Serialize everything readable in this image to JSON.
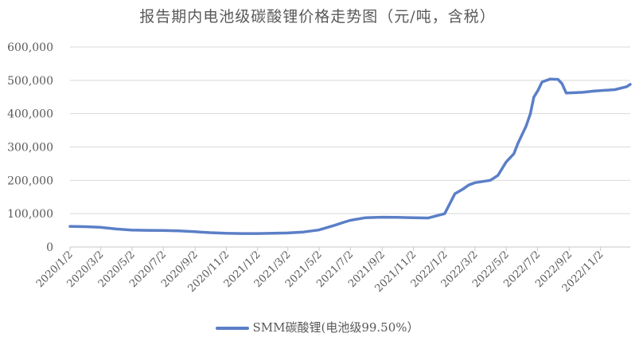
{
  "chart_data": {
    "type": "line",
    "title": "报告期内电池级碳酸锂价格走势图（元/吨，含税）",
    "xlabel": "",
    "ylabel": "",
    "ylim": [
      0,
      600000
    ],
    "xlim": [
      "2020-01-02",
      "2022-12-30"
    ],
    "yticks": [
      "0",
      "100,000",
      "200,000",
      "300,000",
      "400,000",
      "500,000",
      "600,000"
    ],
    "xticks": [
      "2020/1/2",
      "2020/3/2",
      "2020/5/2",
      "2020/7/2",
      "2020/9/2",
      "2020/11/2",
      "2021/1/2",
      "2021/3/2",
      "2021/5/2",
      "2021/7/2",
      "2021/9/2",
      "2021/11/2",
      "2022/1/2",
      "2022/3/2",
      "2022/5/2",
      "2022/7/2",
      "2022/9/2",
      "2022/11/2"
    ],
    "grid": true,
    "legend": "bottom",
    "color": "#5b7fc7",
    "series": [
      {
        "name": "SMM碳酸锂(电池级99.50%）",
        "x": [
          "2020-01-02",
          "2020-02-01",
          "2020-03-01",
          "2020-04-01",
          "2020-05-01",
          "2020-06-01",
          "2020-07-01",
          "2020-08-01",
          "2020-09-01",
          "2020-10-01",
          "2020-11-01",
          "2020-12-01",
          "2021-01-01",
          "2021-02-01",
          "2021-03-01",
          "2021-04-01",
          "2021-05-01",
          "2021-06-01",
          "2021-06-19",
          "2021-07-02",
          "2021-08-01",
          "2021-09-01",
          "2021-10-01",
          "2021-11-01",
          "2021-12-01",
          "2022-01-02",
          "2022-01-22",
          "2022-02-05",
          "2022-02-18",
          "2022-03-02",
          "2022-04-01",
          "2022-04-16",
          "2022-05-02",
          "2022-05-17",
          "2022-05-25",
          "2022-06-10",
          "2022-06-18",
          "2022-06-25",
          "2022-07-03",
          "2022-07-11",
          "2022-07-27",
          "2022-08-11",
          "2022-08-19",
          "2022-08-27",
          "2022-09-28",
          "2022-10-21",
          "2022-11-30",
          "2022-12-23",
          "2022-12-30"
        ],
        "values": [
          62000,
          61000,
          59000,
          54000,
          51000,
          50000,
          49500,
          48500,
          46000,
          43000,
          41000,
          40500,
          40500,
          41000,
          42000,
          45000,
          51000,
          65000,
          74000,
          80000,
          88000,
          89500,
          89000,
          88000,
          87000,
          100000,
          160000,
          172000,
          186000,
          193000,
          200000,
          215000,
          255000,
          280000,
          311000,
          363000,
          399000,
          450000,
          470000,
          495000,
          504000,
          503000,
          490000,
          462000,
          464000,
          468000,
          472000,
          481000,
          488000
        ]
      }
    ]
  }
}
